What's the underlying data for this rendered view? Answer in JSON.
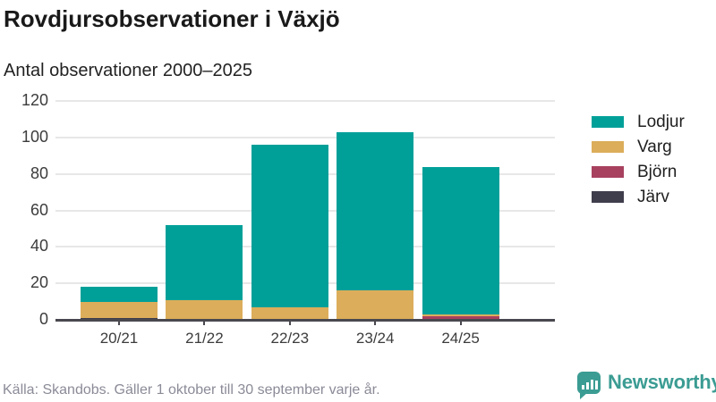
{
  "header": {
    "title": "Rovdjursobservationer i Växjö",
    "subtitle": "Antal observationer 2000–2025"
  },
  "chart_data": {
    "type": "bar",
    "stacked": true,
    "title": "Rovdjursobservationer i Växjö",
    "subtitle": "Antal observationer 2000–2025",
    "categories": [
      "20/21",
      "21/22",
      "22/23",
      "23/24",
      "24/25"
    ],
    "series": [
      {
        "name": "Lodjur",
        "color": "#00A099",
        "values": [
          8,
          41,
          89,
          87,
          81
        ]
      },
      {
        "name": "Varg",
        "color": "#DCAD5A",
        "values": [
          9,
          11,
          7,
          16,
          1
        ]
      },
      {
        "name": "Björn",
        "color": "#A8415F",
        "values": [
          0,
          0,
          0,
          0,
          2
        ]
      },
      {
        "name": "Järv",
        "color": "#3F3E4C",
        "values": [
          1,
          0,
          0,
          0,
          0
        ]
      }
    ],
    "totals": [
      18,
      52,
      96,
      103,
      84
    ],
    "stack_order_bottom_to_top": [
      "Järv",
      "Björn",
      "Varg",
      "Lodjur"
    ],
    "xlabel": "",
    "ylabel": "",
    "ylim": [
      0,
      120
    ],
    "yticks": [
      0,
      20,
      40,
      60,
      80,
      100,
      120
    ],
    "grid": true,
    "legend_position": "right"
  },
  "footer": {
    "source": "Källa: Skandobs. Gäller 1 oktober till 30 september varje år.",
    "logo_text": "Newsworthy"
  },
  "colors": {
    "accent_teal": "#00A099",
    "varg_tan": "#DCAD5A",
    "bjorn_maroon": "#A8415F",
    "jarv_dark": "#3F3E4C",
    "gridline": "#E7E7E7",
    "axis": "#49484F",
    "text_dark": "#191919",
    "text_muted": "#8B8B98",
    "logo_teal": "#3B9C93"
  }
}
